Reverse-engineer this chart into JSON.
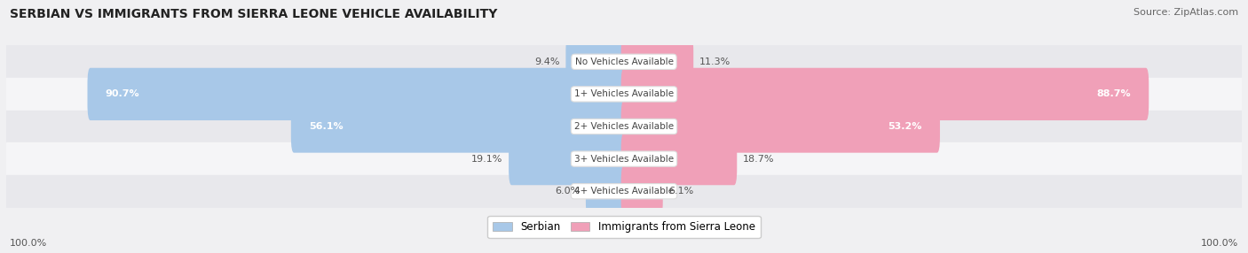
{
  "title": "SERBIAN VS IMMIGRANTS FROM SIERRA LEONE VEHICLE AVAILABILITY",
  "source": "Source: ZipAtlas.com",
  "categories": [
    "No Vehicles Available",
    "1+ Vehicles Available",
    "2+ Vehicles Available",
    "3+ Vehicles Available",
    "4+ Vehicles Available"
  ],
  "serbian_values": [
    9.4,
    90.7,
    56.1,
    19.1,
    6.0
  ],
  "immigrant_values": [
    11.3,
    88.7,
    53.2,
    18.7,
    6.1
  ],
  "serbian_color": "#a8c8e8",
  "immigrant_color": "#f0a0b8",
  "bar_height": 0.62,
  "row_bg_colors": [
    "#e8e8ec",
    "#f5f5f7",
    "#e8e8ec",
    "#f5f5f7",
    "#e8e8ec"
  ],
  "footer_label": "100.0%",
  "threshold_inside": 40
}
